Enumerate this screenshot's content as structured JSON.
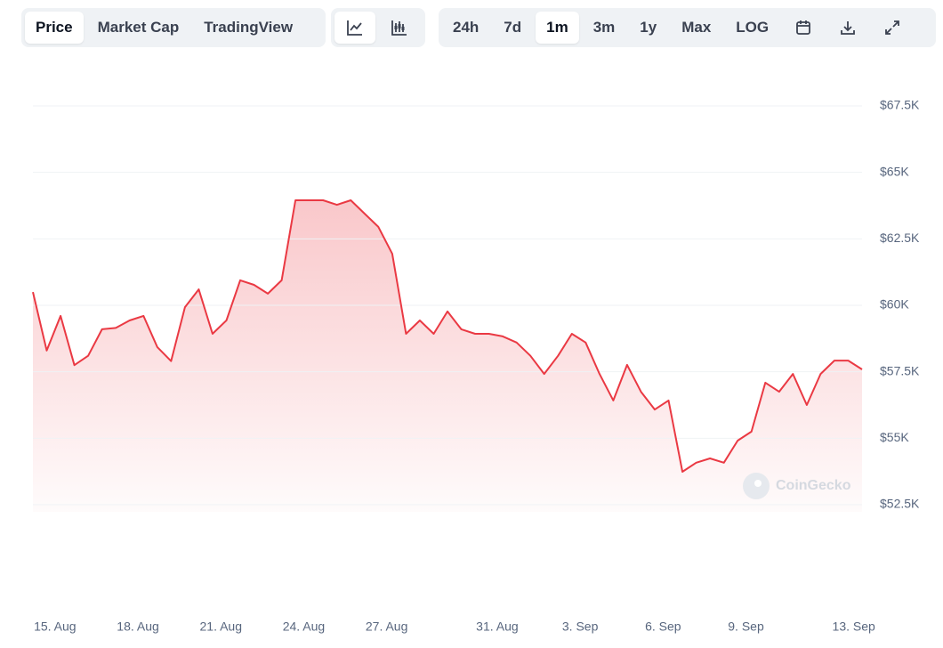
{
  "toolbar": {
    "views": [
      "Price",
      "Market Cap",
      "TradingView"
    ],
    "ranges": [
      "24h",
      "7d",
      "1m",
      "3m",
      "1y",
      "Max",
      "LOG"
    ]
  },
  "chart_data": {
    "type": "area",
    "watermark": "CoinGecko",
    "series": [
      {
        "name": "Price",
        "color": "#ea3943",
        "values": [
          60500,
          58300,
          59600,
          57750,
          58100,
          59100,
          59150,
          59430,
          59600,
          58430,
          57900,
          59930,
          60600,
          58930,
          59430,
          60940,
          60770,
          60440,
          60940,
          63950,
          63950,
          63950,
          63780,
          63950,
          63450,
          62950,
          61940,
          58930,
          59430,
          58930,
          59770,
          59100,
          58930,
          58930,
          58830,
          58600,
          58100,
          57420,
          58100,
          58930,
          58600,
          57420,
          56420,
          57760,
          56750,
          56080,
          56420,
          53740,
          54080,
          54240,
          54080,
          54910,
          55250,
          57090,
          56750,
          57420,
          56250,
          57420,
          57920,
          57920,
          57590
        ]
      }
    ],
    "xlim": [
      0,
      60
    ],
    "xticks": [
      {
        "value": 1.6,
        "label": "15. Aug"
      },
      {
        "value": 7.6,
        "label": "18. Aug"
      },
      {
        "value": 13.6,
        "label": "21. Aug"
      },
      {
        "value": 19.6,
        "label": "24. Aug"
      },
      {
        "value": 25.6,
        "label": "27. Aug"
      },
      {
        "value": 33.6,
        "label": "31. Aug"
      },
      {
        "value": 39.6,
        "label": "3. Sep"
      },
      {
        "value": 45.6,
        "label": "6. Sep"
      },
      {
        "value": 51.6,
        "label": "9. Sep"
      },
      {
        "value": 59.4,
        "label": "13. Sep"
      }
    ],
    "ylim": [
      52500,
      67500
    ],
    "yticks": [
      {
        "value": 52500,
        "label": "$52.5K"
      },
      {
        "value": 55000,
        "label": "$55K"
      },
      {
        "value": 57500,
        "label": "$57.5K"
      },
      {
        "value": 60000,
        "label": "$60K"
      },
      {
        "value": 62500,
        "label": "$62.5K"
      },
      {
        "value": 65000,
        "label": "$65K"
      },
      {
        "value": 67500,
        "label": "$67.5K"
      }
    ],
    "grid": true
  }
}
